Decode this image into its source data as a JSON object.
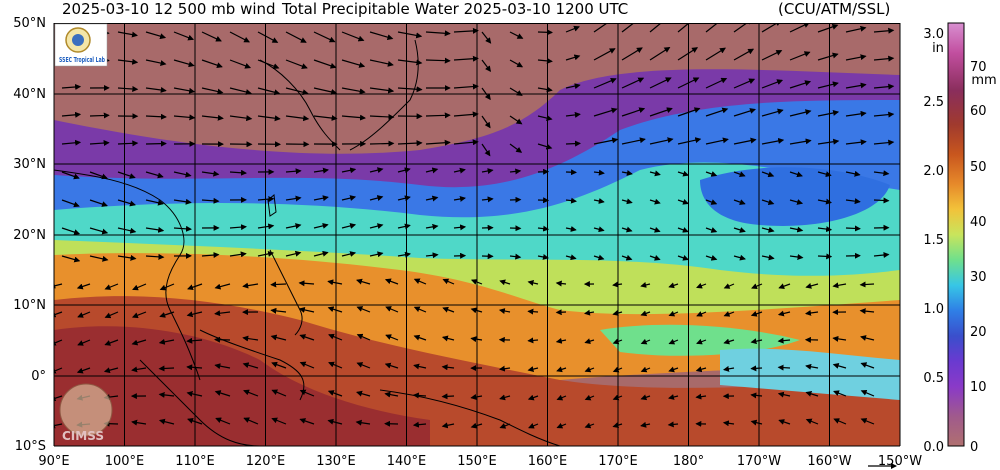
{
  "header": {
    "wind_label": "2025-03-10 12 500 mb wind",
    "title": "Total Precipitable Water  2025-03-10 1200 UTC",
    "source": "(CCU/ATM/SSL)"
  },
  "map": {
    "lat_labels": [
      "50°N",
      "40°N",
      "30°N",
      "20°N",
      "10°N",
      "0°",
      "10°S"
    ],
    "lon_labels": [
      "90°E",
      "100°E",
      "110°E",
      "120°E",
      "130°E",
      "140°E",
      "150°E",
      "160°E",
      "170°E",
      "180°",
      "170°W",
      "160°W",
      "150°W"
    ],
    "lat_range": [
      -10,
      50
    ],
    "lon_range": [
      90,
      210
    ],
    "grid_spacing_deg": 10
  },
  "colorbar": {
    "unit_in": "in",
    "unit_mm": "mm",
    "in_ticks": [
      "3.0",
      "2.5",
      "2.0",
      "1.5",
      "1.0",
      "0.5",
      "0.0"
    ],
    "mm_ticks": [
      "70",
      "60",
      "50",
      "40",
      "30",
      "20",
      "10",
      "0"
    ],
    "colors": [
      "#d88fd0",
      "#c24fa0",
      "#8a2e5c",
      "#a03a2e",
      "#c8561e",
      "#e6892a",
      "#f2c23a",
      "#c9e45c",
      "#6fe08c",
      "#37c6e6",
      "#2f7fe6",
      "#3a4fcc",
      "#6a3ad0",
      "#8a3ac8",
      "#a05a8c",
      "#b07070"
    ]
  },
  "logos": {
    "top_left": "SSEC Tropical Lab",
    "bottom_left": "CIMSS"
  }
}
